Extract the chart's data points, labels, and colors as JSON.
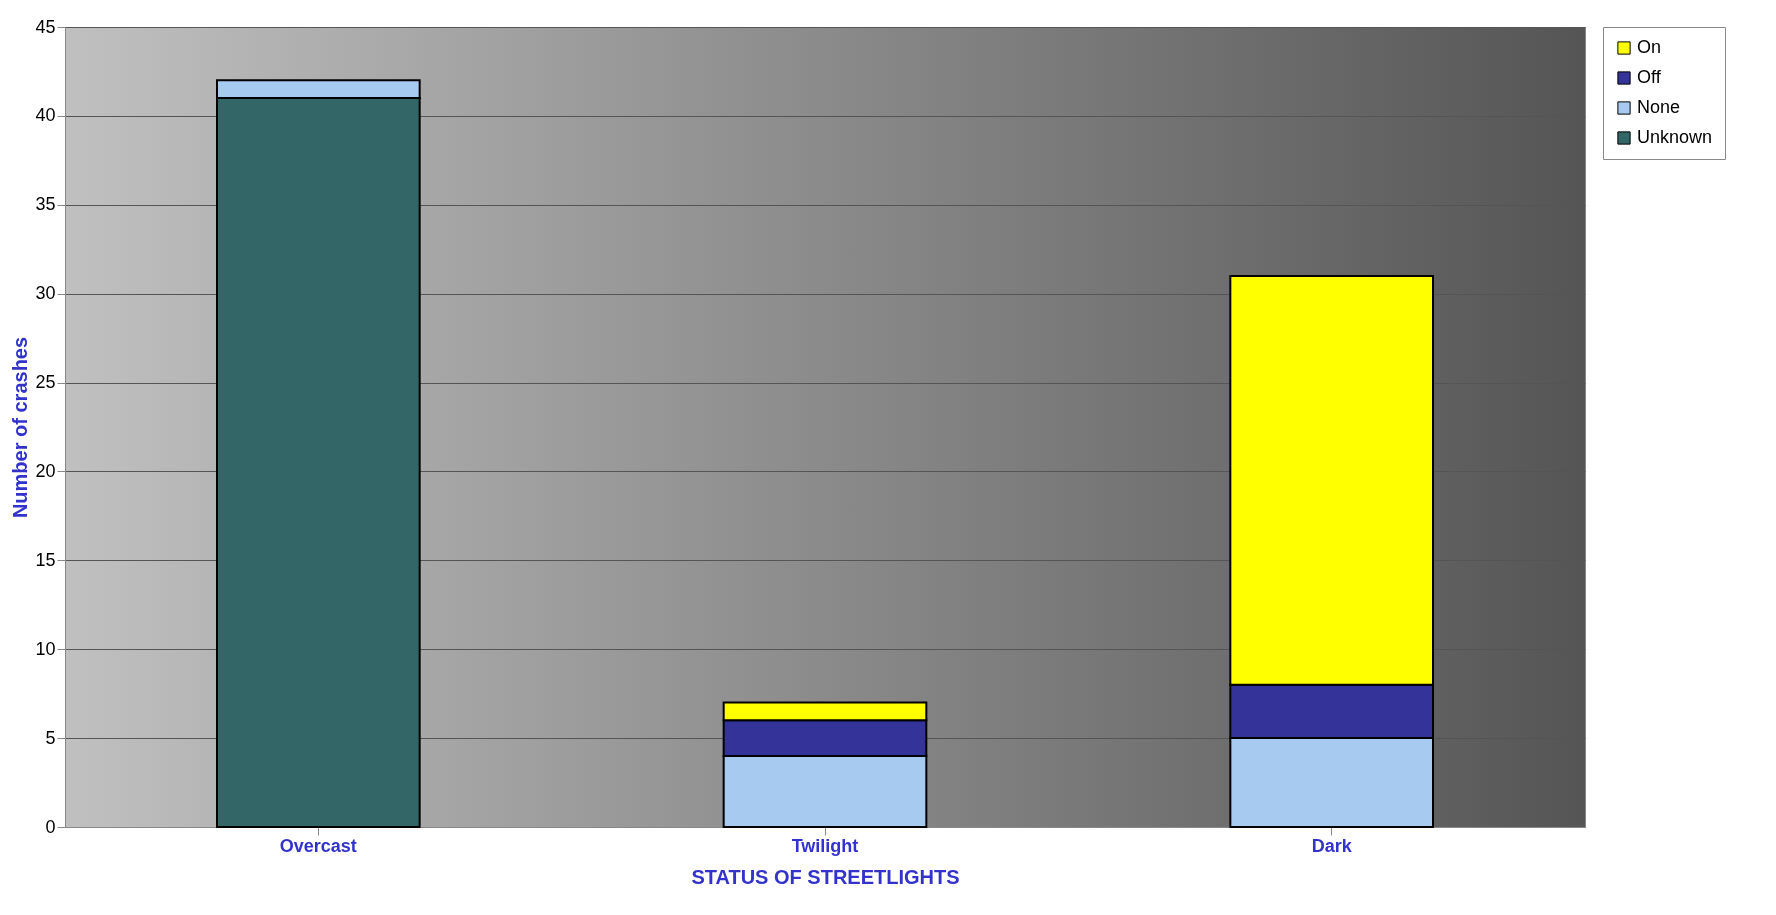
{
  "chart_data": {
    "type": "bar",
    "stacked": true,
    "xlabel": "STATUS OF STREETLIGHTS",
    "ylabel": "Number of crashes",
    "categories": [
      "Overcast",
      "Twilight",
      "Dark"
    ],
    "series": [
      {
        "name": "Unknown",
        "color": "#336666",
        "values": [
          41,
          0,
          0
        ]
      },
      {
        "name": "None",
        "color": "#a6caf0",
        "values": [
          1,
          4,
          5
        ]
      },
      {
        "name": "Off",
        "color": "#333399",
        "values": [
          0,
          2,
          3
        ]
      },
      {
        "name": "On",
        "color": "#ffff00",
        "values": [
          0,
          1,
          23
        ]
      }
    ],
    "ylim": [
      0,
      45
    ],
    "yticks": [
      0,
      5,
      10,
      15,
      20,
      25,
      30,
      35,
      40,
      45
    ],
    "grid": "y",
    "legend": "right"
  }
}
